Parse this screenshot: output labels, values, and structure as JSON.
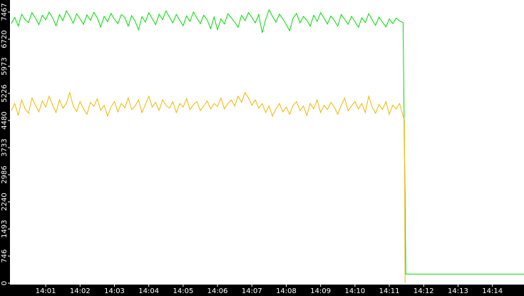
{
  "chart_data": {
    "type": "line",
    "x": [
      0,
      0.1,
      0.2,
      0.3,
      0.4,
      0.5,
      0.6,
      0.7,
      0.8,
      0.9,
      1,
      1.1,
      1.2,
      1.3,
      1.4,
      1.5,
      1.6,
      1.7,
      1.8,
      1.9,
      2,
      2.1,
      2.2,
      2.3,
      2.4,
      2.5,
      2.6,
      2.7,
      2.8,
      2.9,
      3,
      3.1,
      3.2,
      3.3,
      3.4,
      3.5,
      3.6,
      3.7,
      3.8,
      3.9,
      4,
      4.1,
      4.2,
      4.3,
      4.4,
      4.5,
      4.6,
      4.7,
      4.8,
      4.9,
      5,
      5.1,
      5.2,
      5.3,
      5.4,
      5.5,
      5.6,
      5.7,
      5.8,
      5.9,
      6,
      6.1,
      6.2,
      6.3,
      6.4,
      6.5,
      6.6,
      6.7,
      6.8,
      6.9,
      7,
      7.1,
      7.2,
      7.3,
      7.4,
      7.5,
      7.6,
      7.7,
      7.8,
      7.9,
      8,
      8.1,
      8.2,
      8.3,
      8.4,
      8.5,
      8.6,
      8.7,
      8.8,
      8.9,
      9,
      9.1,
      9.2,
      9.3,
      9.4,
      9.5,
      9.6,
      9.7,
      9.8,
      9.9,
      10,
      10.1,
      10.2,
      10.3,
      10.4,
      10.5,
      10.6,
      10.7,
      10.8,
      10.9,
      11,
      11.1,
      11.2,
      11.3,
      11.4,
      11.44,
      11.46,
      11.48,
      14.92
    ],
    "series": [
      {
        "color": "#00dd00",
        "values": [
          7150,
          7320,
          7080,
          7410,
          7260,
          7180,
          7450,
          7300,
          7120,
          7380,
          7250,
          7470,
          7310,
          7090,
          7400,
          7230,
          7500,
          7350,
          7160,
          7420,
          7280,
          7130,
          7390,
          7240,
          7460,
          7310,
          7060,
          7350,
          7200,
          7430,
          7270,
          7150,
          7400,
          7320,
          7080,
          7370,
          7220,
          6980,
          7340,
          7190,
          7450,
          7290,
          7120,
          7410,
          7260,
          7500,
          7330,
          7170,
          7400,
          7240,
          7090,
          7360,
          7210,
          7470,
          7300,
          7150,
          7380,
          7250,
          7010,
          7330,
          6980,
          7280,
          7140,
          7420,
          7310,
          7190,
          7050,
          7380,
          7230,
          7450,
          7320,
          7170,
          7400,
          6900,
          7260,
          7530,
          7350,
          7190,
          7410,
          7280,
          7120,
          6950,
          7300,
          7430,
          7170,
          7350,
          7240,
          7080,
          7380,
          7210,
          7450,
          7300,
          7140,
          7360,
          7230,
          7080,
          7400,
          7270,
          7130,
          7350,
          7200,
          7050,
          7310,
          7180,
          7420,
          7260,
          7100,
          7330,
          7190,
          7060,
          7280,
          7150,
          7300,
          7220,
          7180,
          3700,
          2500,
          250,
          250
        ]
      },
      {
        "color": "#f0b800",
        "values": [
          4750,
          4950,
          4620,
          5050,
          4800,
          4680,
          5100,
          4900,
          4720,
          5020,
          4850,
          5150,
          4900,
          4700,
          5050,
          4820,
          4950,
          5250,
          4880,
          4730,
          5000,
          4800,
          4650,
          4980,
          4870,
          5080,
          4760,
          4900,
          4600,
          4850,
          5000,
          4720,
          4950,
          4830,
          5100,
          4780,
          4880,
          5050,
          4700,
          4920,
          5150,
          4850,
          4980,
          4760,
          5050,
          4900,
          4820,
          5000,
          4700,
          4950,
          4850,
          5080,
          4780,
          4920,
          5000,
          4750,
          4880,
          5020,
          4800,
          4950,
          4870,
          5100,
          4800,
          4950,
          5050,
          4880,
          5150,
          4980,
          5250,
          5100,
          4900,
          5050,
          4820,
          4950,
          4700,
          4880,
          4600,
          4800,
          4950,
          4720,
          4850,
          4650,
          4900,
          5000,
          4750,
          4880,
          4620,
          4950,
          4800,
          5050,
          4700,
          4900,
          4780,
          4980,
          4850,
          4650,
          4900,
          5100,
          4750,
          4880,
          5000,
          4800,
          4950,
          4700,
          5150,
          4850,
          4680,
          4920,
          4780,
          5000,
          4650,
          4900,
          4800,
          4950,
          4600,
          4500,
          0,
          null,
          null
        ]
      }
    ],
    "xlim": [
      -0.04,
      14.92
    ],
    "ylim": [
      0,
      7800
    ],
    "xticks": [
      {
        "value": 1,
        "label": "14:01"
      },
      {
        "value": 2,
        "label": "14:02"
      },
      {
        "value": 3,
        "label": "14:03"
      },
      {
        "value": 4,
        "label": "14:04"
      },
      {
        "value": 5,
        "label": "14:05"
      },
      {
        "value": 6,
        "label": "14:06"
      },
      {
        "value": 7,
        "label": "14:07"
      },
      {
        "value": 8,
        "label": "14:08"
      },
      {
        "value": 9,
        "label": "14:09"
      },
      {
        "value": 10,
        "label": "14:10"
      },
      {
        "value": 11,
        "label": "14:11"
      },
      {
        "value": 12,
        "label": "14:12"
      },
      {
        "value": 13,
        "label": "14:13"
      },
      {
        "value": 14,
        "label": "14:14"
      }
    ],
    "yticks": [
      0,
      746,
      1493,
      2240,
      2986,
      3733,
      4480,
      5226,
      5973,
      6720,
      7467
    ]
  }
}
